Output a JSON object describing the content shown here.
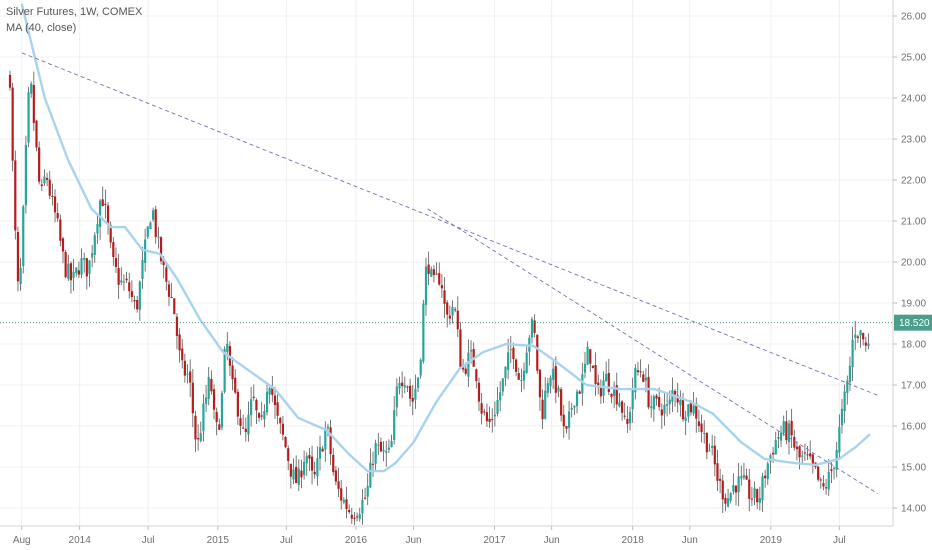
{
  "legend": {
    "title": "Silver Futures, 1W, COMEX",
    "indicator": "MA (40, close)"
  },
  "last_price": {
    "label": "18.520",
    "value": 18.52
  },
  "colors": {
    "up": "#26a69a",
    "down": "#b71c1c",
    "wick": "#555555",
    "ma": "#a8d3ee",
    "trendline": "#7a6fb0",
    "grid": "#f0f0f0",
    "price_line": "#3c8f7a",
    "price_badge": "#4a9e8a"
  },
  "chart_data": {
    "type": "candlestick",
    "title": "Silver Futures, 1W, COMEX",
    "xlabel": "",
    "ylabel": "",
    "ylim": [
      13.6,
      26.3
    ],
    "x_range": [
      "2013-07-01",
      "2019-09-20"
    ],
    "y_ticks": [
      "14.00",
      "15.00",
      "16.00",
      "17.00",
      "18.00",
      "19.00",
      "20.00",
      "21.00",
      "22.00",
      "23.00",
      "24.00",
      "25.00",
      "26.00"
    ],
    "x_ticks": [
      {
        "label": "Aug",
        "date": "2013-08-01"
      },
      {
        "label": "2014",
        "date": "2014-01-01"
      },
      {
        "label": "Jul",
        "date": "2014-07-01"
      },
      {
        "label": "2015",
        "date": "2015-01-01"
      },
      {
        "label": "Jul",
        "date": "2015-07-01"
      },
      {
        "label": "2016",
        "date": "2016-01-01"
      },
      {
        "label": "Jun",
        "date": "2016-06-01"
      },
      {
        "label": "2017",
        "date": "2017-01-01"
      },
      {
        "label": "Jun",
        "date": "2017-06-01"
      },
      {
        "label": "2018",
        "date": "2018-01-01"
      },
      {
        "label": "Jun",
        "date": "2018-06-01"
      },
      {
        "label": "2019",
        "date": "2019-01-01"
      },
      {
        "label": "Jul",
        "date": "2019-07-01"
      }
    ],
    "close_path": [
      [
        "2013-07-01",
        24.5
      ],
      [
        "2013-07-05",
        23.0
      ],
      [
        "2013-07-12",
        21.5
      ],
      [
        "2013-07-19",
        19.5
      ],
      [
        "2013-07-26",
        19.2
      ],
      [
        "2013-08-02",
        20.5
      ],
      [
        "2013-08-16",
        23.5
      ],
      [
        "2013-08-23",
        24.5
      ],
      [
        "2013-09-06",
        23.0
      ],
      [
        "2013-09-20",
        21.5
      ],
      [
        "2013-10-04",
        22.2
      ],
      [
        "2013-10-18",
        21.5
      ],
      [
        "2013-11-01",
        21.0
      ],
      [
        "2013-11-22",
        19.9
      ],
      [
        "2013-12-13",
        19.5
      ],
      [
        "2014-01-03",
        20.0
      ],
      [
        "2014-01-24",
        19.8
      ],
      [
        "2014-02-14",
        21.0
      ],
      [
        "2014-02-28",
        21.7
      ],
      [
        "2014-03-14",
        21.0
      ],
      [
        "2014-03-28",
        20.0
      ],
      [
        "2014-04-18",
        19.5
      ],
      [
        "2014-05-09",
        19.4
      ],
      [
        "2014-05-30",
        18.8
      ],
      [
        "2014-06-13",
        19.7
      ],
      [
        "2014-07-04",
        21.0
      ],
      [
        "2014-07-11",
        21.4
      ],
      [
        "2014-07-25",
        20.5
      ],
      [
        "2014-08-15",
        19.6
      ],
      [
        "2014-09-05",
        19.0
      ],
      [
        "2014-09-26",
        17.4
      ],
      [
        "2014-10-17",
        17.2
      ],
      [
        "2014-11-07",
        15.4
      ],
      [
        "2014-11-21",
        16.2
      ],
      [
        "2014-12-12",
        17.2
      ],
      [
        "2014-12-26",
        15.8
      ],
      [
        "2015-01-09",
        16.3
      ],
      [
        "2015-01-23",
        18.2
      ],
      [
        "2015-02-06",
        17.0
      ],
      [
        "2015-02-20",
        16.6
      ],
      [
        "2015-03-13",
        15.6
      ],
      [
        "2015-04-03",
        16.7
      ],
      [
        "2015-04-24",
        15.8
      ],
      [
        "2015-05-15",
        17.3
      ],
      [
        "2015-06-05",
        16.2
      ],
      [
        "2015-06-26",
        15.6
      ],
      [
        "2015-07-17",
        14.8
      ],
      [
        "2015-07-31",
        14.6
      ],
      [
        "2015-08-21",
        15.4
      ],
      [
        "2015-09-11",
        14.6
      ],
      [
        "2015-10-02",
        15.5
      ],
      [
        "2015-10-16",
        16.0
      ],
      [
        "2015-11-06",
        14.6
      ],
      [
        "2015-11-27",
        14.2
      ],
      [
        "2015-12-18",
        13.9
      ],
      [
        "2016-01-08",
        14.0
      ],
      [
        "2016-01-29",
        14.3
      ],
      [
        "2016-02-19",
        15.5
      ],
      [
        "2016-03-11",
        15.3
      ],
      [
        "2016-04-01",
        15.3
      ],
      [
        "2016-04-22",
        17.2
      ],
      [
        "2016-05-13",
        17.2
      ],
      [
        "2016-05-27",
        16.5
      ],
      [
        "2016-06-17",
        17.4
      ],
      [
        "2016-07-01",
        19.5
      ],
      [
        "2016-07-08",
        20.1
      ],
      [
        "2016-07-22",
        19.4
      ],
      [
        "2016-08-12",
        19.7
      ],
      [
        "2016-08-26",
        18.6
      ],
      [
        "2016-09-16",
        19.0
      ],
      [
        "2016-10-07",
        17.3
      ],
      [
        "2016-10-28",
        17.7
      ],
      [
        "2016-11-11",
        17.5
      ],
      [
        "2016-11-25",
        16.5
      ],
      [
        "2016-12-16",
        16.0
      ],
      [
        "2017-01-06",
        16.5
      ],
      [
        "2017-01-27",
        17.2
      ],
      [
        "2017-02-17",
        18.0
      ],
      [
        "2017-03-10",
        17.0
      ],
      [
        "2017-03-31",
        18.2
      ],
      [
        "2017-04-14",
        18.5
      ],
      [
        "2017-05-05",
        16.2
      ],
      [
        "2017-05-26",
        17.4
      ],
      [
        "2017-06-16",
        16.9
      ],
      [
        "2017-07-07",
        15.6
      ],
      [
        "2017-07-28",
        16.7
      ],
      [
        "2017-08-18",
        17.0
      ],
      [
        "2017-09-08",
        17.9
      ],
      [
        "2017-09-29",
        16.7
      ],
      [
        "2017-10-20",
        17.2
      ],
      [
        "2017-11-10",
        16.9
      ],
      [
        "2017-12-01",
        16.6
      ],
      [
        "2017-12-15",
        15.8
      ],
      [
        "2018-01-05",
        17.2
      ],
      [
        "2018-01-26",
        17.4
      ],
      [
        "2018-02-16",
        16.5
      ],
      [
        "2018-03-09",
        16.5
      ],
      [
        "2018-04-06",
        16.4
      ],
      [
        "2018-04-20",
        17.0
      ],
      [
        "2018-05-11",
        16.4
      ],
      [
        "2018-06-01",
        16.5
      ],
      [
        "2018-06-15",
        16.4
      ],
      [
        "2018-07-06",
        15.8
      ],
      [
        "2018-07-27",
        15.4
      ],
      [
        "2018-08-17",
        14.6
      ],
      [
        "2018-09-07",
        14.2
      ],
      [
        "2018-09-28",
        14.6
      ],
      [
        "2018-10-19",
        14.6
      ],
      [
        "2018-11-09",
        14.3
      ],
      [
        "2018-11-30",
        14.2
      ],
      [
        "2018-12-21",
        15.0
      ],
      [
        "2019-01-11",
        15.6
      ],
      [
        "2019-02-01",
        15.9
      ],
      [
        "2019-02-22",
        15.8
      ],
      [
        "2019-03-15",
        15.2
      ],
      [
        "2019-04-05",
        15.2
      ],
      [
        "2019-04-26",
        14.9
      ],
      [
        "2019-05-17",
        14.4
      ],
      [
        "2019-06-07",
        14.8
      ],
      [
        "2019-06-21",
        15.3
      ],
      [
        "2019-07-12",
        16.5
      ],
      [
        "2019-07-26",
        17.2
      ],
      [
        "2019-08-09",
        18.4
      ],
      [
        "2019-08-30",
        18.2
      ],
      [
        "2019-09-13",
        17.8
      ],
      [
        "2019-09-20",
        18.52
      ]
    ],
    "ma_40": [
      [
        "2013-08-01",
        26.3
      ],
      [
        "2013-10-01",
        24.0
      ],
      [
        "2013-12-01",
        22.5
      ],
      [
        "2014-02-01",
        21.3
      ],
      [
        "2014-03-25",
        20.85
      ],
      [
        "2014-05-01",
        20.85
      ],
      [
        "2014-06-15",
        20.3
      ],
      [
        "2014-08-01",
        20.2
      ],
      [
        "2014-09-15",
        19.6
      ],
      [
        "2014-11-15",
        18.6
      ],
      [
        "2015-01-15",
        17.8
      ],
      [
        "2015-04-01",
        17.3
      ],
      [
        "2015-06-01",
        16.9
      ],
      [
        "2015-08-01",
        16.2
      ],
      [
        "2015-10-15",
        15.9
      ],
      [
        "2015-12-15",
        15.3
      ],
      [
        "2016-02-01",
        14.9
      ],
      [
        "2016-03-15",
        14.9
      ],
      [
        "2016-04-15",
        15.1
      ],
      [
        "2016-06-01",
        15.6
      ],
      [
        "2016-08-01",
        16.6
      ],
      [
        "2016-10-01",
        17.4
      ],
      [
        "2016-12-01",
        17.8
      ],
      [
        "2017-02-01",
        18.0
      ],
      [
        "2017-04-15",
        17.95
      ],
      [
        "2017-06-15",
        17.55
      ],
      [
        "2017-09-01",
        17.0
      ],
      [
        "2017-12-01",
        16.9
      ],
      [
        "2018-03-01",
        16.9
      ],
      [
        "2018-06-01",
        16.6
      ],
      [
        "2018-08-01",
        16.3
      ],
      [
        "2018-10-15",
        15.6
      ],
      [
        "2018-12-15",
        15.2
      ],
      [
        "2019-03-01",
        15.1
      ],
      [
        "2019-05-01",
        15.05
      ],
      [
        "2019-07-01",
        15.2
      ],
      [
        "2019-08-15",
        15.5
      ],
      [
        "2019-09-20",
        15.8
      ]
    ],
    "trendlines": [
      {
        "from": [
          "2013-08-02",
          25.1
        ],
        "to": [
          "2019-10-10",
          16.75
        ]
      },
      {
        "from": [
          "2016-07-08",
          21.3
        ],
        "to": [
          "2019-10-10",
          14.35
        ]
      }
    ]
  }
}
